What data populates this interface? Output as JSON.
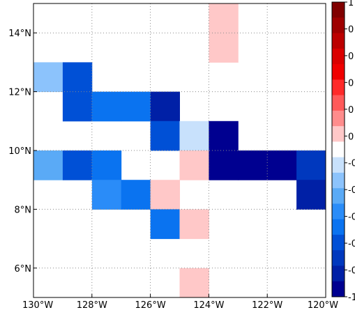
{
  "map": {
    "lon_range": [
      -130,
      -120
    ],
    "lat_range": [
      5,
      15
    ],
    "cell_size_deg": 1,
    "x_ticks": [
      {
        "value": -130,
        "label": "130°W"
      },
      {
        "value": -128,
        "label": "128°W"
      },
      {
        "value": -126,
        "label": "126°W"
      },
      {
        "value": -124,
        "label": "124°W"
      },
      {
        "value": -122,
        "label": "122°W"
      },
      {
        "value": -120,
        "label": "120°W"
      }
    ],
    "y_ticks": [
      {
        "value": 6,
        "label": "6°N"
      },
      {
        "value": 8,
        "label": "8°N"
      },
      {
        "value": 10,
        "label": "10°N"
      },
      {
        "value": 12,
        "label": "12°N"
      },
      {
        "value": 14,
        "label": "14°N"
      }
    ],
    "grid": "dotted",
    "cells": [
      {
        "lon": -124,
        "lat": 14,
        "color": "#ffc8c8"
      },
      {
        "lon": -124,
        "lat": 13,
        "color": "#ffc8c8"
      },
      {
        "lon": -130,
        "lat": 12,
        "color": "#8cc3fc"
      },
      {
        "lon": -129,
        "lat": 12,
        "color": "#0050d6"
      },
      {
        "lon": -129,
        "lat": 11,
        "color": "#0050d6"
      },
      {
        "lon": -128,
        "lat": 11,
        "color": "#0a73f0"
      },
      {
        "lon": -127,
        "lat": 11,
        "color": "#0a73f0"
      },
      {
        "lon": -126,
        "lat": 11,
        "color": "#0020a6"
      },
      {
        "lon": -126,
        "lat": 10,
        "color": "#0050d6"
      },
      {
        "lon": -125,
        "lat": 10,
        "color": "#c8e1fc"
      },
      {
        "lon": -124,
        "lat": 10,
        "color": "#000090"
      },
      {
        "lon": -130,
        "lat": 9,
        "color": "#5aaaf6"
      },
      {
        "lon": -129,
        "lat": 9,
        "color": "#0050d6"
      },
      {
        "lon": -128,
        "lat": 9,
        "color": "#0a73f0"
      },
      {
        "lon": -125,
        "lat": 9,
        "color": "#ffc8c8"
      },
      {
        "lon": -124,
        "lat": 9,
        "color": "#000090"
      },
      {
        "lon": -123,
        "lat": 9,
        "color": "#000090"
      },
      {
        "lon": -122,
        "lat": 9,
        "color": "#000090"
      },
      {
        "lon": -121,
        "lat": 9,
        "color": "#0038be"
      },
      {
        "lon": -128,
        "lat": 8,
        "color": "#2a8cf8"
      },
      {
        "lon": -127,
        "lat": 8,
        "color": "#0a73f0"
      },
      {
        "lon": -126,
        "lat": 8,
        "color": "#ffc8c8"
      },
      {
        "lon": -121,
        "lat": 8,
        "color": "#0020a6"
      },
      {
        "lon": -126,
        "lat": 7,
        "color": "#0a73f0"
      },
      {
        "lon": -125,
        "lat": 7,
        "color": "#ffc8c8"
      },
      {
        "lon": -125,
        "lat": 5,
        "color": "#ffc8c8"
      }
    ]
  },
  "colorbar": {
    "colors": [
      "#800000",
      "#9e0000",
      "#bc0000",
      "#da0000",
      "#f00000",
      "#ff2a2a",
      "#ff5a5a",
      "#ff8c8c",
      "#ffc8c8",
      "#ffffff",
      "#c8e1fc",
      "#8cc3fc",
      "#5aaaf6",
      "#2a8cf8",
      "#0a73f0",
      "#0050d6",
      "#0038be",
      "#0020a6",
      "#000090"
    ],
    "tick_labels": [
      "1",
      "0",
      "0",
      "0",
      "0",
      "0",
      "-0",
      "-0",
      "-0",
      "-0",
      "-0",
      "-1"
    ]
  }
}
